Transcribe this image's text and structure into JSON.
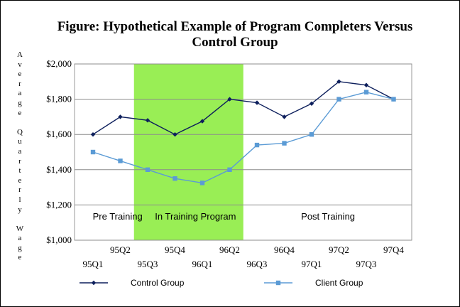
{
  "chart_data": {
    "type": "line",
    "title_line1": "Figure:  Hypothetical Example of Program Completers Versus",
    "title_line2": "Control Group",
    "ylabel": "Average Quarterly Wage",
    "ylim": [
      1000,
      2000
    ],
    "yticks": [
      "$1,000",
      "$1,200",
      "$1,400",
      "$1,600",
      "$1,800",
      "$2,000"
    ],
    "categories": [
      "95Q1",
      "95Q2",
      "95Q3",
      "95Q4",
      "96Q1",
      "96Q2",
      "96Q3",
      "96Q4",
      "97Q1",
      "97Q2",
      "97Q3",
      "97Q4"
    ],
    "grid": true,
    "series": [
      {
        "name": "Control Group",
        "color": "#0d1f5c",
        "marker": "diamond",
        "values": [
          1600,
          1700,
          1680,
          1600,
          1675,
          1800,
          1780,
          1700,
          1775,
          1900,
          1880,
          1800
        ]
      },
      {
        "name": "Client Group",
        "color": "#5b9bd5",
        "marker": "square",
        "values": [
          1500,
          1450,
          1400,
          1350,
          1325,
          1400,
          1540,
          1550,
          1600,
          1800,
          1840,
          1800
        ]
      }
    ],
    "highlight": {
      "color": "#99ee55",
      "from_index": 2,
      "to_index": 5
    },
    "regions": [
      {
        "label": "Pre Training",
        "at_index": 0.9
      },
      {
        "label": "In Training Program",
        "at_index": 3.75
      },
      {
        "label": "Post Training",
        "at_index": 8.6
      }
    ],
    "legend_position": "bottom"
  }
}
